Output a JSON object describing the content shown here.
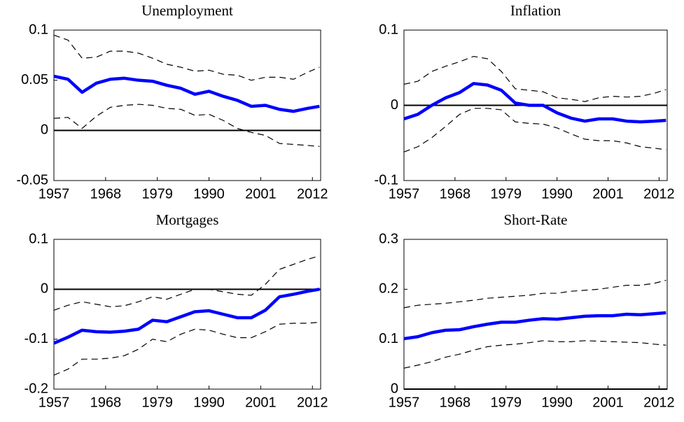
{
  "chart_data": [
    {
      "type": "line",
      "title": "Unemployment",
      "x": [
        1957,
        1960,
        1963,
        1966,
        1969,
        1972,
        1975,
        1978,
        1981,
        1984,
        1987,
        1990,
        1993,
        1996,
        1999,
        2002,
        2005,
        2008,
        2011,
        2013.5
      ],
      "series": [
        {
          "color": "#0000ff",
          "style": "solid",
          "values": [
            0.054,
            0.051,
            0.038,
            0.047,
            0.051,
            0.052,
            0.05,
            0.049,
            0.045,
            0.042,
            0.036,
            0.039,
            0.034,
            0.03,
            0.024,
            0.025,
            0.021,
            0.019,
            0.022,
            0.024
          ]
        },
        {
          "color": "#000000",
          "style": "dashed",
          "values": [
            0.095,
            0.09,
            0.072,
            0.073,
            0.079,
            0.079,
            0.077,
            0.072,
            0.066,
            0.063,
            0.059,
            0.06,
            0.056,
            0.055,
            0.05,
            0.053,
            0.053,
            0.051,
            0.058,
            0.063
          ]
        },
        {
          "color": "#000000",
          "style": "dashed",
          "values": [
            0.012,
            0.013,
            0.002,
            0.014,
            0.023,
            0.025,
            0.026,
            0.025,
            0.022,
            0.021,
            0.015,
            0.016,
            0.01,
            0.002,
            -0.002,
            -0.005,
            -0.013,
            -0.014,
            -0.015,
            -0.016
          ]
        }
      ],
      "hline": 0,
      "xlim": [
        1957,
        2013.75
      ],
      "xticks": [
        1957,
        1968,
        1979,
        1990,
        2001,
        2012
      ],
      "ylim": [
        -0.05,
        0.1
      ],
      "yticks": [
        -0.05,
        0,
        0.05,
        0.1
      ]
    },
    {
      "type": "line",
      "title": "Inflation",
      "x": [
        1957,
        1960,
        1963,
        1966,
        1969,
        1972,
        1975,
        1978,
        1981,
        1984,
        1987,
        1990,
        1993,
        1996,
        1999,
        2002,
        2005,
        2008,
        2011,
        2013.5
      ],
      "series": [
        {
          "color": "#0000ff",
          "style": "solid",
          "values": [
            -0.018,
            -0.012,
            0.0,
            0.01,
            0.017,
            0.029,
            0.027,
            0.02,
            0.003,
            0.0,
            0.0,
            -0.01,
            -0.017,
            -0.021,
            -0.018,
            -0.018,
            -0.021,
            -0.022,
            -0.021,
            -0.02
          ]
        },
        {
          "color": "#000000",
          "style": "dashed",
          "values": [
            0.028,
            0.032,
            0.045,
            0.052,
            0.058,
            0.065,
            0.062,
            0.045,
            0.022,
            0.02,
            0.018,
            0.01,
            0.008,
            0.005,
            0.01,
            0.012,
            0.011,
            0.012,
            0.016,
            0.021
          ]
        },
        {
          "color": "#000000",
          "style": "dashed",
          "values": [
            -0.062,
            -0.055,
            -0.043,
            -0.028,
            -0.012,
            -0.004,
            -0.004,
            -0.006,
            -0.022,
            -0.024,
            -0.025,
            -0.03,
            -0.038,
            -0.045,
            -0.047,
            -0.047,
            -0.05,
            -0.055,
            -0.057,
            -0.059
          ]
        }
      ],
      "hline": 0,
      "xlim": [
        1957,
        2013.75
      ],
      "xticks": [
        1957,
        1968,
        1979,
        1990,
        2001,
        2012
      ],
      "ylim": [
        -0.1,
        0.1
      ],
      "yticks": [
        -0.1,
        0,
        0.1
      ]
    },
    {
      "type": "line",
      "title": "Mortgages",
      "x": [
        1957,
        1960,
        1963,
        1966,
        1969,
        1972,
        1975,
        1978,
        1981,
        1984,
        1987,
        1990,
        1993,
        1996,
        1999,
        2002,
        2005,
        2008,
        2011,
        2013.5
      ],
      "series": [
        {
          "color": "#0000ff",
          "style": "solid",
          "values": [
            -0.108,
            -0.096,
            -0.082,
            -0.085,
            -0.086,
            -0.084,
            -0.08,
            -0.062,
            -0.065,
            -0.055,
            -0.045,
            -0.043,
            -0.05,
            -0.057,
            -0.057,
            -0.042,
            -0.015,
            -0.01,
            -0.004,
            0.0
          ]
        },
        {
          "color": "#000000",
          "style": "dashed",
          "values": [
            -0.042,
            -0.032,
            -0.025,
            -0.03,
            -0.035,
            -0.033,
            -0.025,
            -0.015,
            -0.02,
            -0.01,
            0.0,
            0.0,
            -0.005,
            -0.01,
            -0.012,
            0.01,
            0.04,
            0.05,
            0.06,
            0.067
          ]
        },
        {
          "color": "#000000",
          "style": "dashed",
          "values": [
            -0.172,
            -0.16,
            -0.14,
            -0.14,
            -0.138,
            -0.133,
            -0.12,
            -0.1,
            -0.105,
            -0.09,
            -0.08,
            -0.082,
            -0.09,
            -0.097,
            -0.097,
            -0.085,
            -0.07,
            -0.068,
            -0.068,
            -0.066
          ]
        }
      ],
      "hline": 0,
      "xlim": [
        1957,
        2013.75
      ],
      "xticks": [
        1957,
        1968,
        1979,
        1990,
        2001,
        2012
      ],
      "ylim": [
        -0.2,
        0.1
      ],
      "yticks": [
        -0.2,
        -0.1,
        0,
        0.1
      ]
    },
    {
      "type": "line",
      "title": "Short-Rate",
      "x": [
        1957,
        1960,
        1963,
        1966,
        1969,
        1972,
        1975,
        1978,
        1981,
        1984,
        1987,
        1990,
        1993,
        1996,
        1999,
        2002,
        2005,
        2008,
        2011,
        2013.5
      ],
      "series": [
        {
          "color": "#0000ff",
          "style": "solid",
          "values": [
            0.101,
            0.105,
            0.113,
            0.118,
            0.119,
            0.125,
            0.13,
            0.134,
            0.134,
            0.138,
            0.141,
            0.14,
            0.143,
            0.146,
            0.147,
            0.147,
            0.15,
            0.149,
            0.151,
            0.153
          ]
        },
        {
          "color": "#000000",
          "style": "dashed",
          "values": [
            0.163,
            0.168,
            0.17,
            0.172,
            0.175,
            0.178,
            0.182,
            0.184,
            0.186,
            0.188,
            0.192,
            0.192,
            0.196,
            0.198,
            0.2,
            0.204,
            0.208,
            0.208,
            0.212,
            0.218
          ]
        },
        {
          "color": "#000000",
          "style": "dashed",
          "values": [
            0.042,
            0.048,
            0.055,
            0.064,
            0.07,
            0.078,
            0.085,
            0.088,
            0.09,
            0.093,
            0.097,
            0.095,
            0.095,
            0.097,
            0.096,
            0.095,
            0.094,
            0.093,
            0.09,
            0.088
          ]
        }
      ],
      "hline": 0,
      "xlim": [
        1957,
        2013.75
      ],
      "xticks": [
        1957,
        1968,
        1979,
        1990,
        2001,
        2012
      ],
      "ylim": [
        0,
        0.3
      ],
      "yticks": [
        0,
        0.1,
        0.2,
        0.3
      ]
    }
  ]
}
